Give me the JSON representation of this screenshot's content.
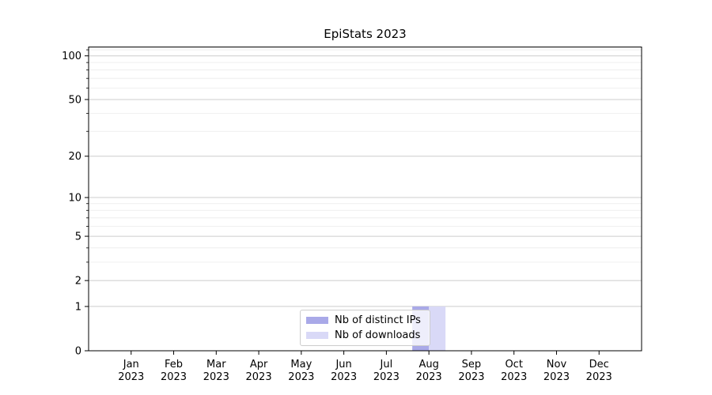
{
  "chart_data": {
    "type": "bar",
    "title": "EpiStats 2023",
    "categories": [
      "Jan",
      "Feb",
      "Mar",
      "Apr",
      "May",
      "Jun",
      "Jul",
      "Aug",
      "Sep",
      "Oct",
      "Nov",
      "Dec"
    ],
    "category_year": "2023",
    "series": [
      {
        "name": "Nb of distinct IPs",
        "color": "#a9a9e8",
        "values": [
          0,
          0,
          0,
          0,
          0,
          0,
          0,
          1,
          0,
          0,
          0,
          0
        ]
      },
      {
        "name": "Nb of downloads",
        "color": "#d9d9f7",
        "values": [
          0,
          0,
          0,
          0,
          0,
          0,
          0,
          1,
          0,
          0,
          0,
          0
        ]
      }
    ],
    "yscale": "log1p",
    "ylim": [
      0,
      115
    ],
    "yticks": [
      0,
      1,
      2,
      5,
      10,
      20,
      50,
      100
    ],
    "yticks_minor": [
      3,
      4,
      6,
      7,
      8,
      9,
      30,
      40,
      60,
      70,
      80,
      90,
      110
    ],
    "xlabel": "",
    "ylabel": "",
    "grid": "horizontal",
    "legend_position": "lower center inside",
    "colors": {
      "grid_major": "#cccccc",
      "grid_minor": "#ebebeb",
      "frame": "#000000",
      "text": "#000000"
    }
  }
}
